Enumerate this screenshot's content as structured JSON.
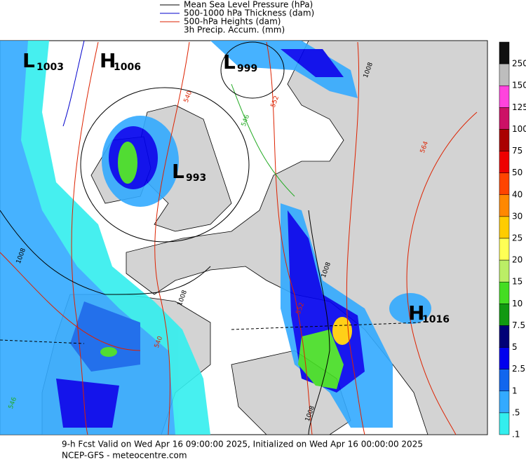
{
  "legend": [
    {
      "label": "Mean Sea Level Pressure (hPa)",
      "color": "#000000"
    },
    {
      "label": "500-1000 hPa Thickness (dam)",
      "color": "#0000cc"
    },
    {
      "label": "500-hPa Heights (dam)",
      "color": "#dd2200"
    },
    {
      "label": "3h Precip. Accum. (mm)"
    }
  ],
  "colorbar": [
    {
      "label": "250",
      "color": "#101010"
    },
    {
      "label": "150",
      "color": "#bdbdbd"
    },
    {
      "label": "125",
      "color": "#ff44dd"
    },
    {
      "label": "100",
      "color": "#cc1166"
    },
    {
      "label": "75",
      "color": "#aa0000"
    },
    {
      "label": "50",
      "color": "#ee0000"
    },
    {
      "label": "40",
      "color": "#ff4400"
    },
    {
      "label": "30",
      "color": "#ff8800"
    },
    {
      "label": "25",
      "color": "#ffcc00"
    },
    {
      "label": "20",
      "color": "#ffff55"
    },
    {
      "label": "15",
      "color": "#bbee66"
    },
    {
      "label": "10",
      "color": "#44dd22"
    },
    {
      "label": "7.5",
      "color": "#119911"
    },
    {
      "label": "5",
      "color": "#000077"
    },
    {
      "label": "2.5",
      "color": "#0000ee"
    },
    {
      "label": "1",
      "color": "#1166ee"
    },
    {
      "label": ".5",
      "color": "#33aaff"
    },
    {
      "label": ".1",
      "color": "#33eeee"
    }
  ],
  "centers": [
    {
      "letter": "L",
      "value": "1003"
    },
    {
      "letter": "H",
      "value": "1006"
    },
    {
      "letter": "L",
      "value": "999"
    },
    {
      "letter": "L",
      "value": "993"
    },
    {
      "letter": "H",
      "value": "1016"
    }
  ],
  "contour_labels": [
    "1008",
    "552",
    "546",
    "564",
    "540",
    "1008",
    "1008",
    "540",
    "546",
    "1008",
    "552",
    "1008"
  ],
  "footer": {
    "line1": "9-h Fcst Valid on Wed Apr 16 09:00:00 2025, Initialized on Wed Apr 16 00:00:00 2025",
    "line2": "NCEP-GFS  - meteocentre.com"
  }
}
